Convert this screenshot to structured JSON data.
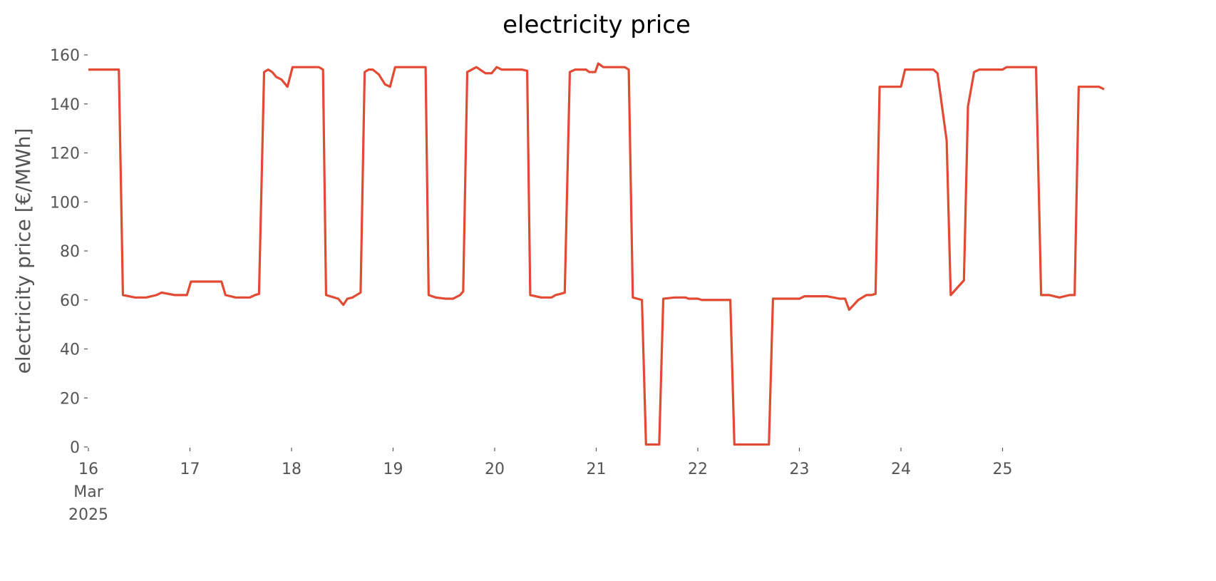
{
  "chart_data": {
    "type": "line",
    "title": "electricity price",
    "ylabel": "electricity price [€/MWh]",
    "x": [
      16.0,
      16.3,
      16.34,
      16.46,
      16.57,
      16.67,
      16.72,
      16.85,
      16.97,
      17.01,
      17.31,
      17.35,
      17.45,
      17.59,
      17.64,
      17.68,
      17.73,
      17.77,
      17.81,
      17.85,
      17.9,
      17.96,
      18.01,
      18.27,
      18.31,
      18.34,
      18.46,
      18.51,
      18.55,
      18.6,
      18.68,
      18.72,
      18.76,
      18.8,
      18.86,
      18.92,
      18.97,
      19.02,
      19.32,
      19.35,
      19.42,
      19.52,
      19.59,
      19.66,
      19.69,
      19.73,
      19.82,
      19.91,
      19.97,
      20.02,
      20.07,
      20.27,
      20.32,
      20.35,
      20.46,
      20.56,
      20.6,
      20.65,
      20.69,
      20.74,
      20.79,
      20.9,
      20.93,
      20.99,
      21.02,
      21.07,
      21.28,
      21.32,
      21.36,
      21.45,
      21.49,
      21.62,
      21.66,
      21.77,
      21.88,
      21.91,
      22.0,
      22.04,
      22.32,
      22.36,
      22.7,
      22.74,
      23.0,
      23.05,
      23.27,
      23.4,
      23.45,
      23.49,
      23.58,
      23.66,
      23.71,
      23.75,
      23.79,
      24.0,
      24.04,
      24.32,
      24.36,
      24.45,
      24.49,
      24.62,
      24.66,
      24.72,
      24.77,
      25.0,
      25.04,
      25.33,
      25.38,
      25.46,
      25.56,
      25.66,
      25.71,
      25.75,
      25.95,
      26.0
    ],
    "series": [
      {
        "name": "electricity price",
        "color": "#e24a33",
        "values": [
          154,
          154,
          62,
          61,
          61,
          62,
          63,
          62,
          62,
          67.5,
          67.5,
          62,
          61,
          61,
          62,
          62.5,
          153,
          154,
          153,
          151,
          150,
          147,
          155,
          155,
          154,
          62,
          60.5,
          58,
          60.5,
          61,
          63,
          153,
          154,
          154,
          152,
          148,
          147,
          155,
          155,
          62,
          61,
          60.5,
          60.5,
          62,
          63.5,
          153,
          155,
          152.5,
          152.5,
          155,
          154,
          154,
          153.5,
          62,
          61,
          61,
          62,
          62.5,
          63,
          153,
          154,
          154,
          153,
          153,
          156.5,
          155,
          155,
          154,
          61,
          60,
          1,
          1,
          60.5,
          61,
          61,
          60.5,
          60.5,
          60,
          60,
          1,
          1,
          60.5,
          60.5,
          61.5,
          61.5,
          60.5,
          60.5,
          56,
          60,
          62,
          62,
          62.5,
          147,
          147,
          154,
          154,
          152.5,
          125,
          62,
          68,
          139,
          153,
          154,
          154,
          155,
          155,
          62,
          62,
          61,
          62,
          62,
          147,
          147,
          146
        ]
      }
    ],
    "xlim": [
      16,
      26
    ],
    "xticks": [
      16,
      17,
      18,
      19,
      20,
      21,
      22,
      23,
      24,
      25
    ],
    "xtick_sublabels": [
      "Mar",
      "2025"
    ],
    "ylim": [
      0,
      160
    ],
    "yticks": [
      0,
      20,
      40,
      60,
      80,
      100,
      120,
      140,
      160
    ],
    "grid": false
  }
}
